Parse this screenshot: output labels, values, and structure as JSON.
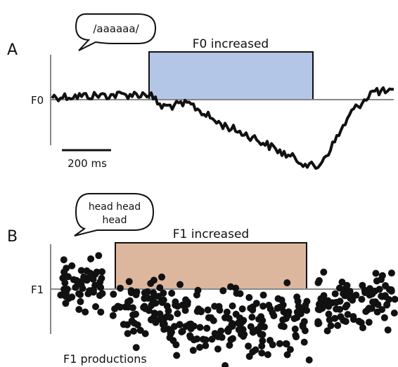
{
  "panel_a": {
    "letter": "A",
    "speech_bubble": "/aaaaaa/",
    "axis_label": "F0",
    "perturbation_label": "F0 increased",
    "perturbation_color": "#b4c6e7",
    "scale_bar_label": "200 ms"
  },
  "panel_b": {
    "letter": "B",
    "speech_bubble_lines": [
      "head head",
      "head"
    ],
    "axis_label": "F1",
    "perturbation_label": "F1 increased",
    "perturbation_color": "#ddb79d",
    "footer_label": "F1 productions"
  }
}
